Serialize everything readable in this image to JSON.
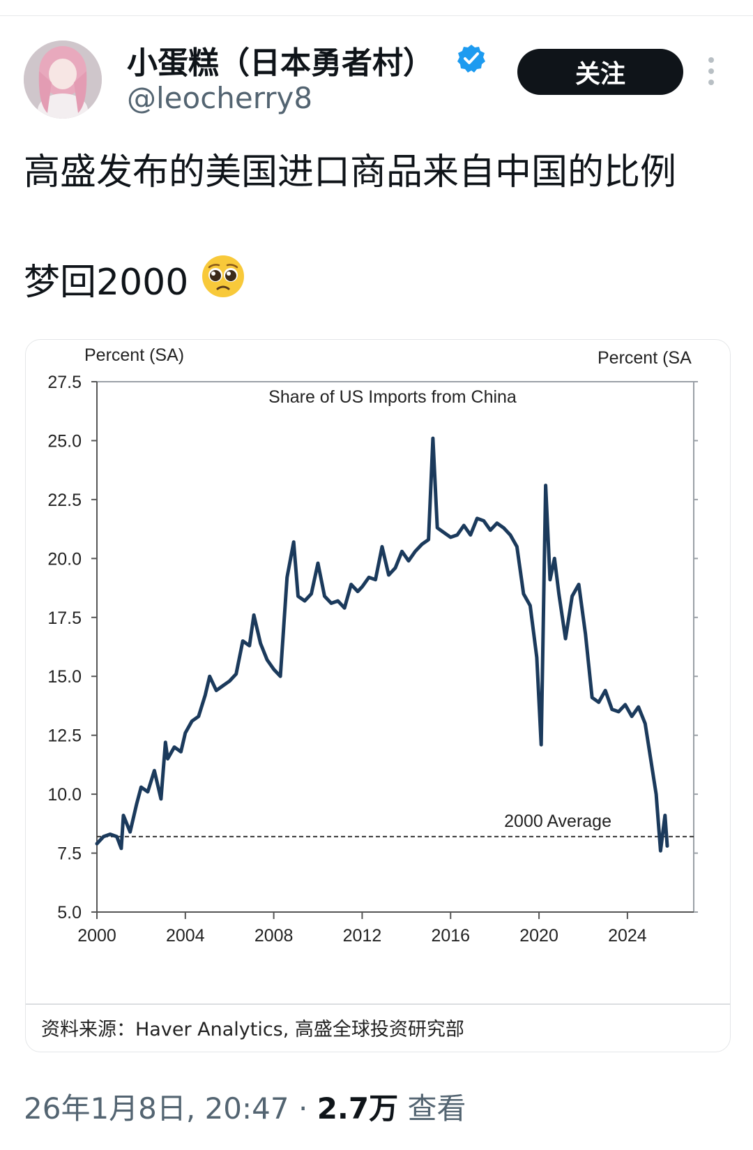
{
  "post": {
    "display_name": "小蛋糕（日本勇者村）",
    "handle": "@leocherry8",
    "follow_label": "关注",
    "text_line1": "高盛发布的美国进口商品来自中国的比例",
    "text_line2": "梦回2000",
    "emoji": "pleading-face-emoji",
    "date_time": "26年1月8日, 20:47 · ",
    "views_count": "2.7万",
    "views_label": " 查看"
  },
  "chart_data": {
    "type": "line",
    "title": "Share of US Imports from China",
    "ylabel_left": "Percent (SA)",
    "ylabel_right": "Percent (SA",
    "ylim": [
      5.0,
      27.5
    ],
    "xlim": [
      2000,
      2027
    ],
    "yticks": [
      "27.5",
      "25.0",
      "22.5",
      "20.0",
      "17.5",
      "15.0",
      "12.5",
      "10.0",
      "7.5",
      "5.0"
    ],
    "xticks": [
      "2000",
      "2004",
      "2008",
      "2012",
      "2016",
      "2020",
      "2024"
    ],
    "reference_line": {
      "label": "2000 Average",
      "value": 8.2
    },
    "line_color": "#1b3a5c",
    "source": "资料来源：Haver Analytics, 高盛全球投资研究部",
    "series": [
      {
        "x": [
          2000.0,
          2000.3,
          2000.6,
          2000.9,
          2001.1,
          2001.2,
          2001.5,
          2001.8,
          2002.0,
          2002.3,
          2002.6,
          2002.9,
          2003.1,
          2003.2,
          2003.5,
          2003.8,
          2004.0,
          2004.3,
          2004.6,
          2004.9,
          2005.1,
          2005.4,
          2005.7,
          2006.0,
          2006.3,
          2006.6,
          2006.9,
          2007.1,
          2007.4,
          2007.7,
          2008.0,
          2008.3,
          2008.6,
          2008.9,
          2009.1,
          2009.4,
          2009.7,
          2010.0,
          2010.3,
          2010.6,
          2010.9,
          2011.2,
          2011.5,
          2011.8,
          2012.0,
          2012.3,
          2012.6,
          2012.9,
          2013.2,
          2013.5,
          2013.8,
          2014.1,
          2014.4,
          2014.7,
          2015.0,
          2015.2,
          2015.4,
          2015.7,
          2016.0,
          2016.3,
          2016.6,
          2016.9,
          2017.2,
          2017.5,
          2017.8,
          2018.1,
          2018.4,
          2018.7,
          2019.0,
          2019.3,
          2019.6,
          2019.9,
          2020.1,
          2020.3,
          2020.5,
          2020.7,
          2020.9,
          2021.2,
          2021.5,
          2021.8,
          2022.1,
          2022.4,
          2022.7,
          2023.0,
          2023.3,
          2023.6,
          2023.9,
          2024.2,
          2024.5,
          2024.8,
          2025.1,
          2025.3,
          2025.5,
          2025.7,
          2025.8
        ],
        "y": [
          7.9,
          8.2,
          8.3,
          8.2,
          7.7,
          9.1,
          8.4,
          9.6,
          10.3,
          10.1,
          11.0,
          9.8,
          12.2,
          11.5,
          12.0,
          11.8,
          12.6,
          13.1,
          13.3,
          14.2,
          15.0,
          14.4,
          14.6,
          14.8,
          15.1,
          16.5,
          16.3,
          17.6,
          16.4,
          15.7,
          15.3,
          15.0,
          19.2,
          20.7,
          18.4,
          18.2,
          18.5,
          19.8,
          18.4,
          18.1,
          18.2,
          17.9,
          18.9,
          18.6,
          18.8,
          19.2,
          19.1,
          20.5,
          19.3,
          19.6,
          20.3,
          19.9,
          20.3,
          20.6,
          20.8,
          25.1,
          21.3,
          21.1,
          20.9,
          21.0,
          21.4,
          21.0,
          21.7,
          21.6,
          21.2,
          21.5,
          21.3,
          21.0,
          20.5,
          18.5,
          18.0,
          15.8,
          12.1,
          23.1,
          19.1,
          20.0,
          18.5,
          16.6,
          18.4,
          18.9,
          16.8,
          14.1,
          13.9,
          14.4,
          13.6,
          13.5,
          13.8,
          13.3,
          13.7,
          13.0,
          11.2,
          10.0,
          7.6,
          9.1,
          7.8
        ]
      }
    ]
  }
}
